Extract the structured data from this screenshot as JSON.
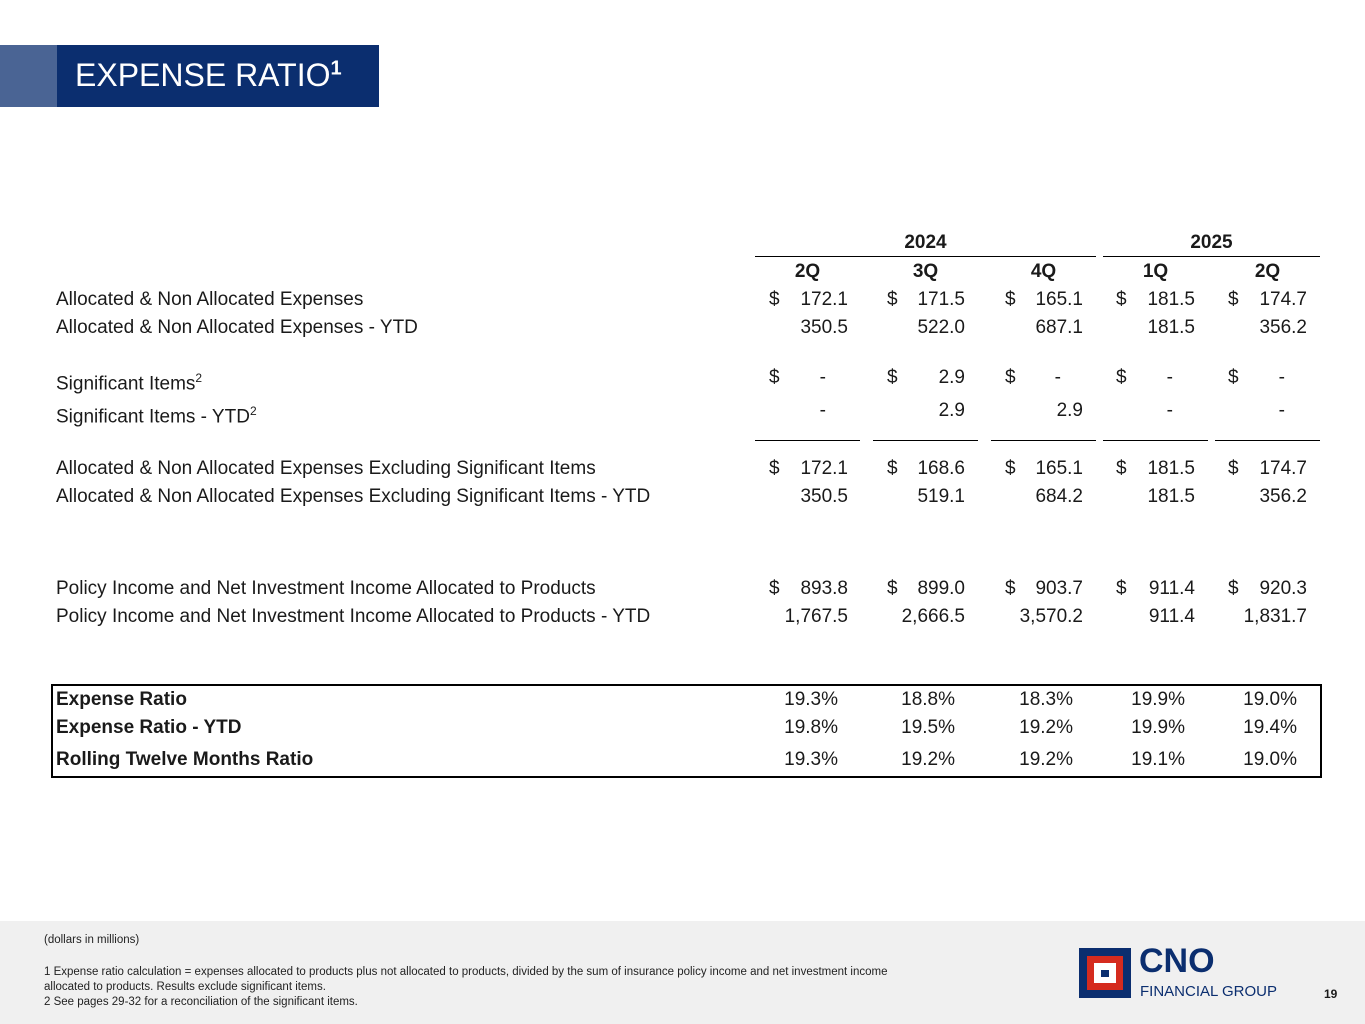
{
  "title": "EXPENSE RATIO",
  "title_sup": "1",
  "years": [
    {
      "label": "2024"
    },
    {
      "label": "2025"
    }
  ],
  "quarters": [
    "2Q",
    "3Q",
    "4Q",
    "1Q",
    "2Q"
  ],
  "rows": [
    {
      "label": "Allocated & Non Allocated Expenses",
      "dollar": true,
      "values": [
        "172.1",
        "171.5",
        "165.1",
        "181.5",
        "174.7"
      ]
    },
    {
      "label": "Allocated & Non Allocated Expenses - YTD",
      "dollar": false,
      "values": [
        "350.5",
        "522.0",
        "687.1",
        "181.5",
        "356.2"
      ]
    },
    {
      "label": "Significant Items",
      "sup": "2",
      "dollar": true,
      "values": [
        "-",
        "2.9",
        "-",
        "-",
        "-"
      ]
    },
    {
      "label": "Significant Items - YTD",
      "sup": "2",
      "dollar": false,
      "values": [
        "-",
        "2.9",
        "2.9",
        "-",
        "-"
      ]
    },
    {
      "label": "Allocated & Non Allocated Expenses Excluding Significant Items",
      "dollar": true,
      "values": [
        "172.1",
        "168.6",
        "165.1",
        "181.5",
        "174.7"
      ]
    },
    {
      "label": "Allocated & Non Allocated Expenses Excluding Significant Items - YTD",
      "dollar": false,
      "values": [
        "350.5",
        "519.1",
        "684.2",
        "181.5",
        "356.2"
      ]
    },
    {
      "label": "Policy Income and Net Investment Income Allocated to Products",
      "dollar": true,
      "values": [
        "893.8",
        "899.0",
        "903.7",
        "911.4",
        "920.3"
      ]
    },
    {
      "label": "Policy Income and Net Investment Income Allocated to Products - YTD",
      "dollar": false,
      "values": [
        "1,767.5",
        "2,666.5",
        "3,570.2",
        "911.4",
        "1,831.7"
      ]
    }
  ],
  "ratios": [
    {
      "label": "Expense Ratio",
      "values": [
        "19.3%",
        "18.8%",
        "18.3%",
        "19.9%",
        "19.0%"
      ]
    },
    {
      "label": "Expense Ratio - YTD",
      "values": [
        "19.8%",
        "19.5%",
        "19.2%",
        "19.9%",
        "19.4%"
      ]
    },
    {
      "label": "Rolling Twelve Months Ratio",
      "values": [
        "19.3%",
        "19.2%",
        "19.2%",
        "19.1%",
        "19.0%"
      ]
    }
  ],
  "dollar_sign": "$",
  "footer": {
    "units": "(dollars in millions)",
    "note1": "1  Expense ratio calculation = expenses allocated to products plus not allocated to products, divided by the sum of insurance policy income and net investment income",
    "note1b": "allocated to products. Results exclude significant items.",
    "note2": "2  See pages 29-32 for a reconciliation of the significant items."
  },
  "logo": {
    "name": "CNO",
    "sub": "FINANCIAL GROUP"
  },
  "page_number": "19",
  "colors": {
    "navy": "#0b2e6f",
    "red": "#d52b1e"
  }
}
